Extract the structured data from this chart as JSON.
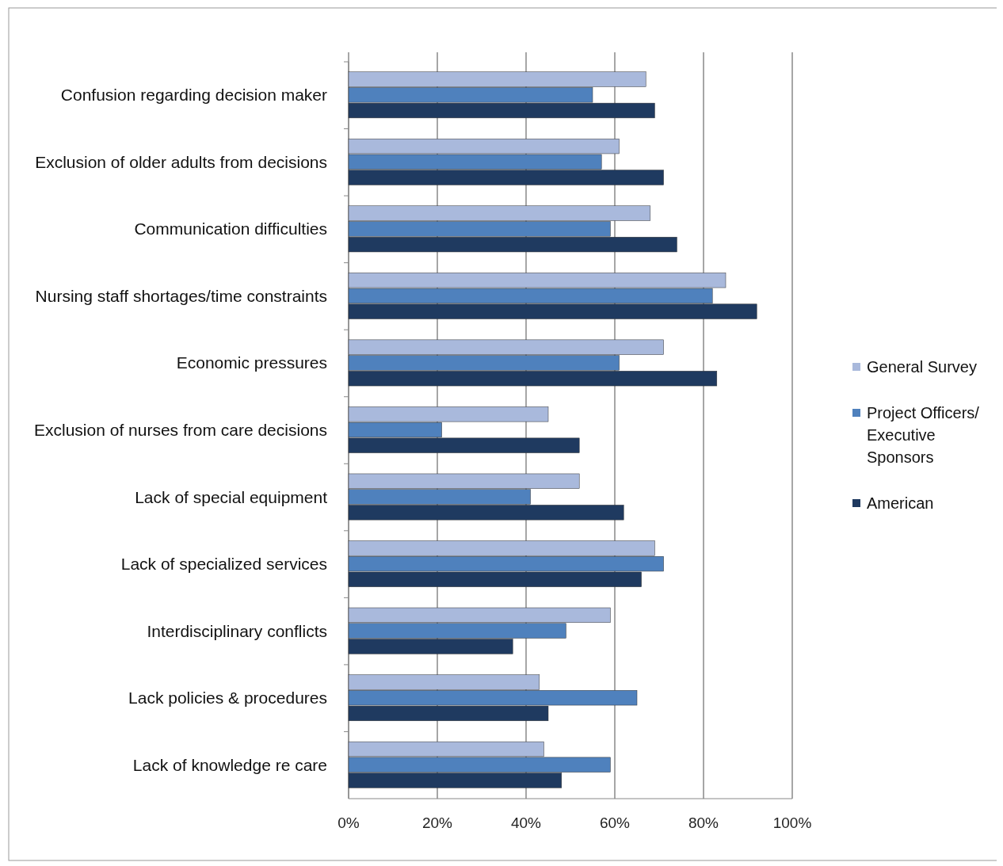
{
  "chart_data": {
    "type": "bar",
    "orientation": "horizontal",
    "categories": [
      "Confusion regarding decision maker",
      "Exclusion of older adults from decisions",
      "Communication difficulties",
      "Nursing staff shortages/time constraints",
      "Economic pressures",
      "Exclusion of nurses from care decisions",
      "Lack of special equipment",
      "Lack of specialized services",
      "Interdisciplinary conflicts",
      "Lack policies  & procedures",
      "Lack of knowledge re care"
    ],
    "series": [
      {
        "name": "General Survey",
        "color": "#a9b9dc",
        "values": [
          67,
          61,
          68,
          85,
          71,
          45,
          52,
          69,
          59,
          43,
          44
        ]
      },
      {
        "name": "Project Officers/ Executive Sponsors",
        "color": "#4f81bd",
        "values": [
          55,
          57,
          59,
          82,
          61,
          21,
          41,
          71,
          49,
          65,
          59
        ]
      },
      {
        "name": "American",
        "color": "#1f3a60",
        "values": [
          69,
          71,
          74,
          92,
          83,
          52,
          62,
          66,
          37,
          45,
          48
        ]
      }
    ],
    "xlim": [
      0,
      100
    ],
    "xticks": [
      {
        "value": 0,
        "label": "0%"
      },
      {
        "value": 20,
        "label": "20%"
      },
      {
        "value": 40,
        "label": "40%"
      },
      {
        "value": 60,
        "label": "60%"
      },
      {
        "value": 80,
        "label": "80%"
      },
      {
        "value": 100,
        "label": "100%"
      }
    ],
    "grid": "x",
    "legend": "right"
  }
}
